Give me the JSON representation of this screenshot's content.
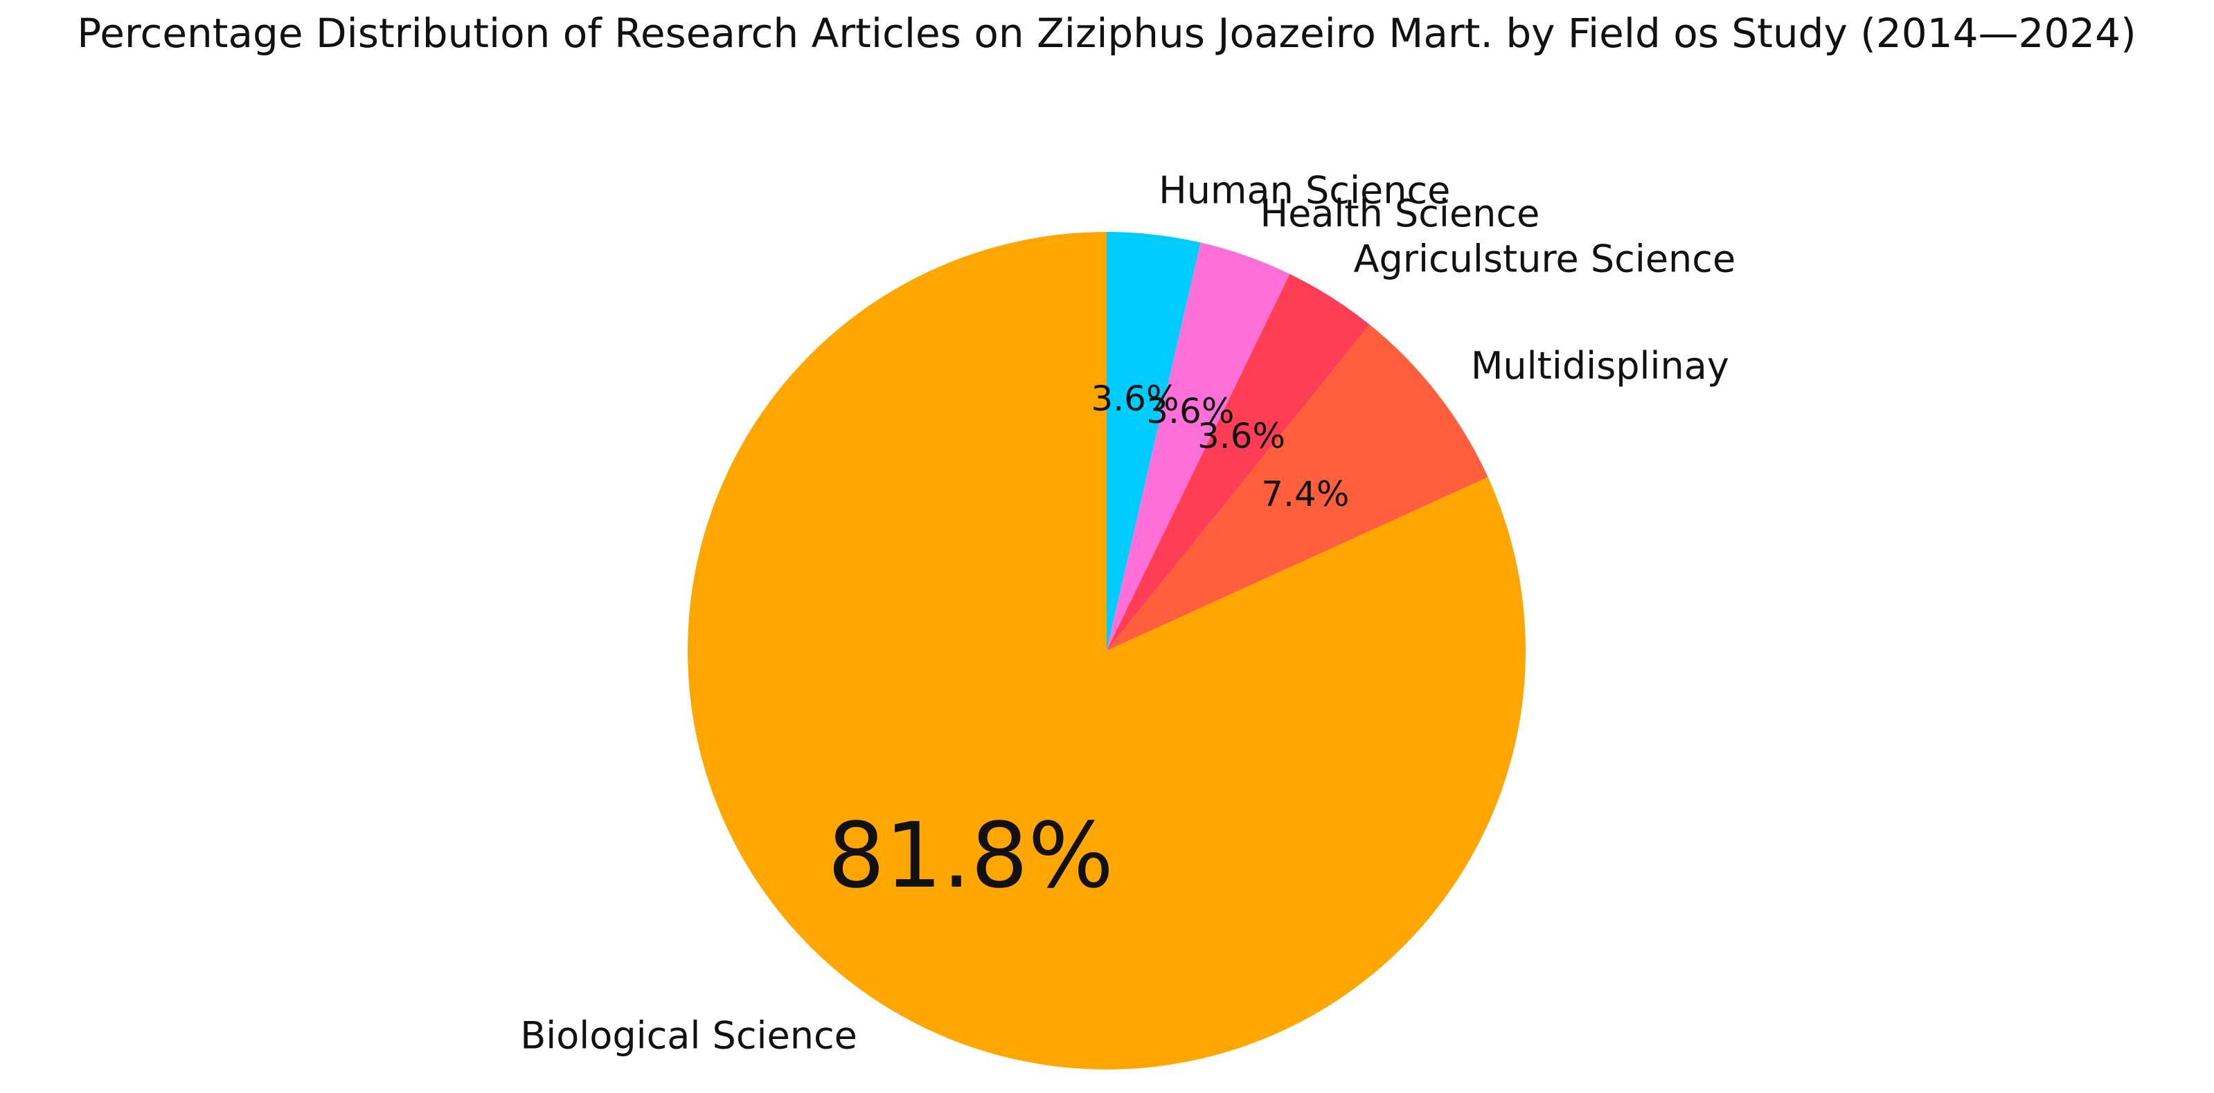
{
  "chart_data": {
    "type": "pie",
    "title": "Percentage Distribution of Research Articles on Ziziphus Joazeiro Mart. by Field os Study (2014—2024)",
    "start_angle_deg": 90,
    "direction": "clockwise",
    "slices": [
      {
        "label": "Human Science",
        "value": 3.6,
        "display": "3.6%",
        "color": "#00CCFF"
      },
      {
        "label": "Health Science",
        "value": 3.6,
        "display": "3.6%",
        "color": "#FF6FD8"
      },
      {
        "label": "Agriculsture Science",
        "value": 3.6,
        "display": "3.6%",
        "color": "#FF3E55"
      },
      {
        "label": "Multidisplinay",
        "value": 7.4,
        "display": "7.4%",
        "color": "#FF5F3D"
      },
      {
        "label": "Biological Science",
        "value": 81.8,
        "display": "81.8%",
        "color": "#FFA600"
      }
    ]
  }
}
